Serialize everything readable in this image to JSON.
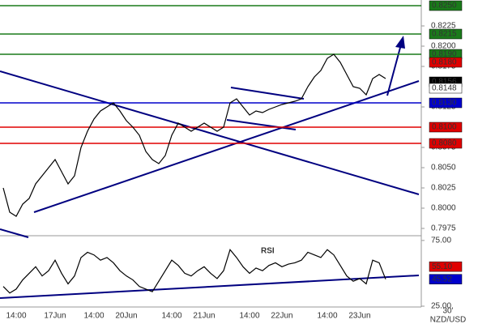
{
  "chart_data": [
    {
      "type": "line",
      "categories": [
        null,
        null,
        "14:00",
        null,
        null,
        null,
        null,
        null,
        "17Jun",
        null,
        null,
        null,
        null,
        null,
        "14:00",
        null,
        null,
        null,
        null,
        "20Jun",
        null,
        null,
        null,
        null,
        null,
        null,
        "14:00",
        null,
        null,
        null,
        null,
        "21Jun",
        null,
        null,
        null,
        null,
        null,
        null,
        "14:00",
        null,
        null,
        null,
        null,
        "22Jun",
        null,
        null,
        null,
        null,
        null,
        null,
        "14:00",
        null,
        null,
        null,
        null,
        "23Jun",
        null,
        null,
        null,
        null
      ],
      "series": [
        {
          "color": "#000000",
          "values": [
            0.8025,
            0.7995,
            0.799,
            0.8005,
            0.8012,
            0.803,
            0.804,
            0.805,
            0.806,
            0.8045,
            0.803,
            0.804,
            0.8075,
            0.8095,
            0.811,
            0.812,
            0.8125,
            0.813,
            0.812,
            0.8108,
            0.81,
            0.809,
            0.807,
            0.806,
            0.8055,
            0.8065,
            0.809,
            0.8105,
            0.81,
            0.8095,
            0.81,
            0.8105,
            0.81,
            0.8095,
            0.81,
            0.813,
            0.8135,
            0.8125,
            0.8115,
            0.812,
            0.8118,
            0.8122,
            0.8125,
            0.8128,
            0.813,
            0.8132,
            0.8135,
            0.815,
            0.8162,
            0.817,
            0.8185,
            0.819,
            0.818,
            0.8165,
            0.815,
            0.8148,
            0.814,
            0.816,
            0.8165,
            0.816
          ]
        }
      ],
      "ylim": [
        0.7967,
        0.8257
      ],
      "yticks": [
        {
          "value": 0.8225,
          "label": "0.8225"
        },
        {
          "value": 0.82,
          "label": "0.8200"
        },
        0.8175,
        0.8125,
        0.8075,
        {
          "value": 0.805,
          "label": "0.8050"
        },
        0.8025,
        {
          "value": 0.8,
          "label": "0.8000"
        },
        0.7975
      ],
      "levels": {
        "values": [
          0.825,
          0.8215,
          0.819,
          0.813,
          0.81,
          0.808
        ],
        "value_labels": [
          "0.8250",
          "0.8215",
          "0.8190",
          "0.8130",
          "0.8100",
          "0.8080"
        ],
        "colors": [
          "#1a7a1a",
          "#1a7a1a",
          "#1a7a1a",
          "#0000cc",
          "#e00000",
          "#e00000"
        ]
      },
      "markers": {
        "values": [
          0.818,
          0.8156,
          0.8148
        ],
        "value_labels": [
          "0.8180",
          "0.8156",
          "0.8148"
        ],
        "colors": [
          "#e00000",
          "#000000",
          "#ffffff"
        ]
      },
      "timeframe": "30'",
      "symbol": "NZD/USD"
    },
    {
      "type": "line",
      "title": "RSI",
      "series": [
        {
          "color": "#000000",
          "values": [
            40,
            35,
            38,
            45,
            50,
            55,
            48,
            52,
            60,
            50,
            42,
            48,
            62,
            66,
            64,
            60,
            62,
            58,
            52,
            48,
            45,
            40,
            38,
            36,
            44,
            52,
            60,
            56,
            50,
            48,
            52,
            55,
            50,
            46,
            52,
            68,
            62,
            55,
            50,
            54,
            52,
            56,
            58,
            55,
            57,
            58,
            60,
            66,
            64,
            62,
            68,
            64,
            56,
            48,
            44,
            46,
            42,
            60,
            58,
            45.52
          ]
        }
      ],
      "ylim": [
        25,
        78
      ],
      "yticks": [
        {
          "value": 75,
          "label": "75.00"
        },
        {
          "value": 25,
          "label": "25.00"
        }
      ],
      "markers": {
        "values": [
          55.1,
          45.52
        ],
        "value_labels": [
          "55.10",
          "45.52"
        ],
        "colors": [
          "#e00000",
          "#0000cc"
        ]
      }
    }
  ]
}
